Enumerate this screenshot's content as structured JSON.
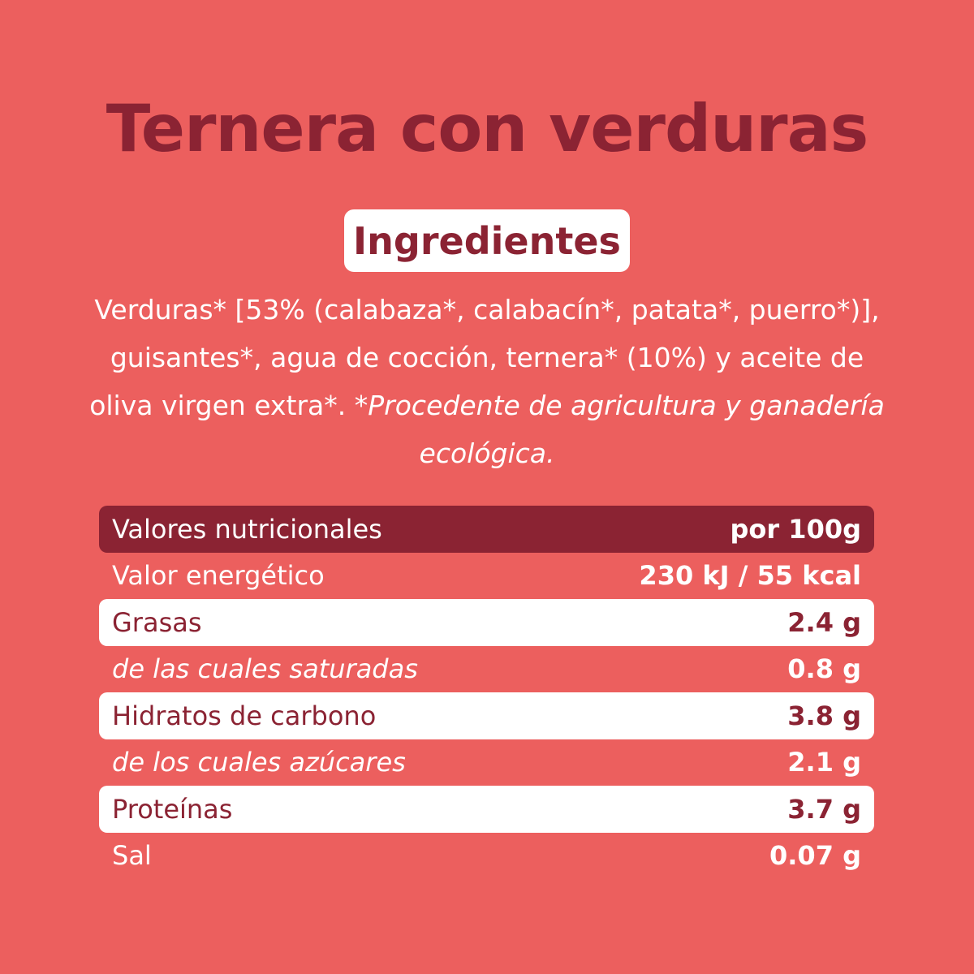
{
  "title": "Ternera con verduras",
  "ingredients_heading": "Ingredientes",
  "ingredients_text": "Verduras* [53% (calabaza*, calabacín*, patata*, puerro*)], guisantes*, agua de cocción, ternera* (10%) y aceite de oliva virgen extra*.",
  "ingredients_note": "*Procedente de agricultura y ganadería ecológica.",
  "nutrition": {
    "header": {
      "label": "Valores nutricionales",
      "value": "por 100g"
    },
    "rows": [
      {
        "label": "Valor energético",
        "value": "230 kJ / 55 kcal"
      },
      {
        "label": "Grasas",
        "value": "2.4 g"
      },
      {
        "label": "de las cuales saturadas",
        "value": "0.8 g"
      },
      {
        "label": "Hidratos de carbono",
        "value": "3.8 g"
      },
      {
        "label": "de los cuales azúcares",
        "value": "2.1 g"
      },
      {
        "label": "Proteínas",
        "value": "3.7 g"
      },
      {
        "label": "Sal",
        "value": "0.07 g"
      }
    ]
  },
  "colors": {
    "background": "#ec5f5e",
    "accent": "#8b2333",
    "highlight": "#ffffff"
  }
}
